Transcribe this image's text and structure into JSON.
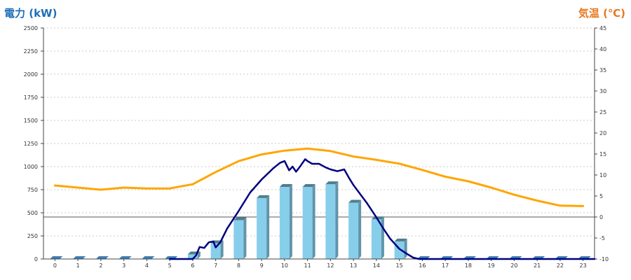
{
  "chart_data": {
    "type": "bar",
    "title_left": "電力 (kW)",
    "title_right": "気温 (℃)",
    "categories": [
      "0",
      "1",
      "2",
      "3",
      "4",
      "5",
      "6",
      "7",
      "8",
      "9",
      "10",
      "11",
      "12",
      "13",
      "14",
      "15",
      "16",
      "17",
      "18",
      "19",
      "20",
      "21",
      "22",
      "23"
    ],
    "y_left": {
      "min": 0,
      "max": 2500,
      "step": 250,
      "ticks": [
        "0",
        "250",
        "500",
        "750",
        "1000",
        "1250",
        "1500",
        "1750",
        "2000",
        "2250",
        "2500"
      ]
    },
    "y_right": {
      "min": -10,
      "max": 45,
      "step": 5,
      "ticks": [
        "-10",
        "-5",
        "0",
        "5",
        "10",
        "15",
        "20",
        "25",
        "30",
        "35",
        "40",
        "45"
      ]
    },
    "grid": true,
    "series": [
      {
        "type": "bar",
        "axis": "left",
        "values": [
          0,
          0,
          0,
          0,
          0,
          0,
          50,
          170,
          420,
          660,
          780,
          780,
          810,
          610,
          430,
          190,
          0,
          0,
          0,
          0,
          0,
          0,
          0,
          0
        ]
      },
      {
        "type": "line",
        "axis": "left",
        "x": [
          5.0,
          6.0,
          6.15,
          6.3,
          6.5,
          6.7,
          6.9,
          7.0,
          7.2,
          7.5,
          8.0,
          8.5,
          9.0,
          9.5,
          9.8,
          10.0,
          10.2,
          10.35,
          10.5,
          10.7,
          10.9,
          11.0,
          11.2,
          11.5,
          11.8,
          12.0,
          12.3,
          12.6,
          12.8,
          13.0,
          13.3,
          13.6,
          14.0,
          14.3,
          14.6,
          15.0,
          15.3,
          15.6,
          15.85,
          16.0,
          17.0,
          18.0,
          19.0,
          20.0,
          21.0,
          22.0,
          23.0,
          23.5
        ],
        "values": [
          0,
          0,
          40,
          130,
          120,
          180,
          190,
          125,
          180,
          330,
          520,
          720,
          860,
          980,
          1040,
          1060,
          960,
          1000,
          945,
          1010,
          1080,
          1060,
          1030,
          1030,
          990,
          970,
          950,
          970,
          880,
          800,
          700,
          600,
          450,
          330,
          220,
          110,
          60,
          15,
          0,
          0,
          0,
          0,
          0,
          0,
          0,
          0,
          0,
          0
        ]
      },
      {
        "type": "line",
        "axis": "right",
        "x": [
          0,
          1,
          2,
          3,
          4,
          5,
          6,
          7,
          8,
          9,
          10,
          11,
          12,
          13,
          14,
          15,
          16,
          17,
          18,
          19,
          20,
          21,
          22,
          23
        ],
        "values": [
          7.5,
          7,
          6.5,
          7,
          6.8,
          6.8,
          7.8,
          10.7,
          13.3,
          14.9,
          15.8,
          16.3,
          15.7,
          14.4,
          13.6,
          12.7,
          11.2,
          9.6,
          8.5,
          7,
          5.3,
          3.9,
          2.7,
          2.6
        ]
      }
    ],
    "colors": {
      "bar": "#87CEEB",
      "power_line": "#000080",
      "temp_line": "#FFA500",
      "title_left": "#1E6FB8",
      "title_right": "#E8781E"
    }
  }
}
